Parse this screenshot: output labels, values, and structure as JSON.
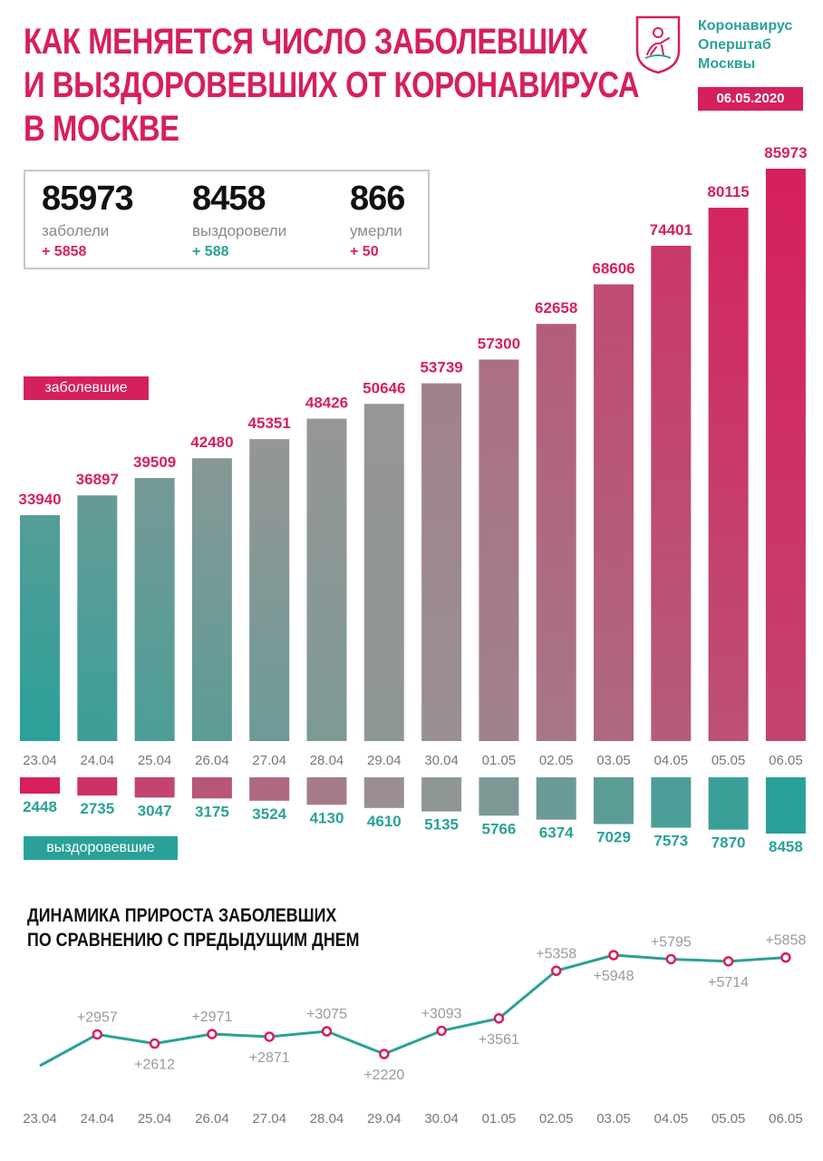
{
  "header": {
    "title_lines": [
      "Как меняется число заболевших",
      "и выздоровевших от коронавируса",
      "в Москве"
    ],
    "org_lines": [
      "Коронавирус",
      "Оперштаб",
      "Москвы"
    ],
    "date": "06.05.2020",
    "logo_icon": "moscow-coat-of-arms-icon"
  },
  "stats": {
    "cases": {
      "value": "85973",
      "label": "заболели",
      "delta": "+ 5858"
    },
    "recovered": {
      "value": "8458",
      "label": "выздоровели",
      "delta": "+ 588"
    },
    "deaths": {
      "value": "866",
      "label": "умерли",
      "delta": "+ 50"
    }
  },
  "labels": {
    "cases_tag": "заболевшие",
    "recovered_tag": "выздоровевшие",
    "growth_title_lines": [
      "Динамика прироста заболевших",
      "по сравнению с предыдущим днем"
    ]
  },
  "colors": {
    "pink": "#d61f5e",
    "teal": "#2aa198",
    "grey": "#8a8a8a"
  },
  "chart_data": [
    {
      "type": "bar",
      "categories": [
        "23.04",
        "24.04",
        "25.04",
        "26.04",
        "27.04",
        "28.04",
        "29.04",
        "30.04",
        "01.05",
        "02.05",
        "03.05",
        "04.05",
        "05.05",
        "06.05"
      ],
      "series": [
        {
          "name": "заболевшие",
          "values": [
            33940,
            36897,
            39509,
            42480,
            45351,
            48426,
            50646,
            53739,
            57300,
            62658,
            68606,
            74401,
            80115,
            85973
          ]
        },
        {
          "name": "выздоровевшие",
          "values": [
            2448,
            2735,
            3047,
            3175,
            3524,
            4130,
            4610,
            5135,
            5766,
            6374,
            7029,
            7573,
            7870,
            8458
          ]
        }
      ],
      "ylim": [
        0,
        90000
      ],
      "grid": false
    },
    {
      "type": "line",
      "title": "Динамика прироста заболевших по сравнению с предыдущим днем",
      "categories": [
        "23.04",
        "24.04",
        "25.04",
        "26.04",
        "27.04",
        "28.04",
        "29.04",
        "30.04",
        "01.05",
        "02.05",
        "03.05",
        "04.05",
        "05.05",
        "06.05"
      ],
      "values": [
        null,
        2957,
        2612,
        2971,
        2871,
        3075,
        2220,
        3093,
        3561,
        5358,
        5948,
        5795,
        5714,
        5858
      ],
      "labels": [
        "",
        "+2957",
        "+2612",
        "+2971",
        "+2871",
        "+3075",
        "+2220",
        "+3093",
        "+3561",
        "+5358",
        "+5948",
        "+5795",
        "+5714",
        "+5858"
      ],
      "label_pos": [
        "",
        "above",
        "below",
        "above",
        "below",
        "above",
        "below",
        "above",
        "below",
        "above",
        "below",
        "above",
        "below",
        "above"
      ],
      "grid": false
    }
  ]
}
